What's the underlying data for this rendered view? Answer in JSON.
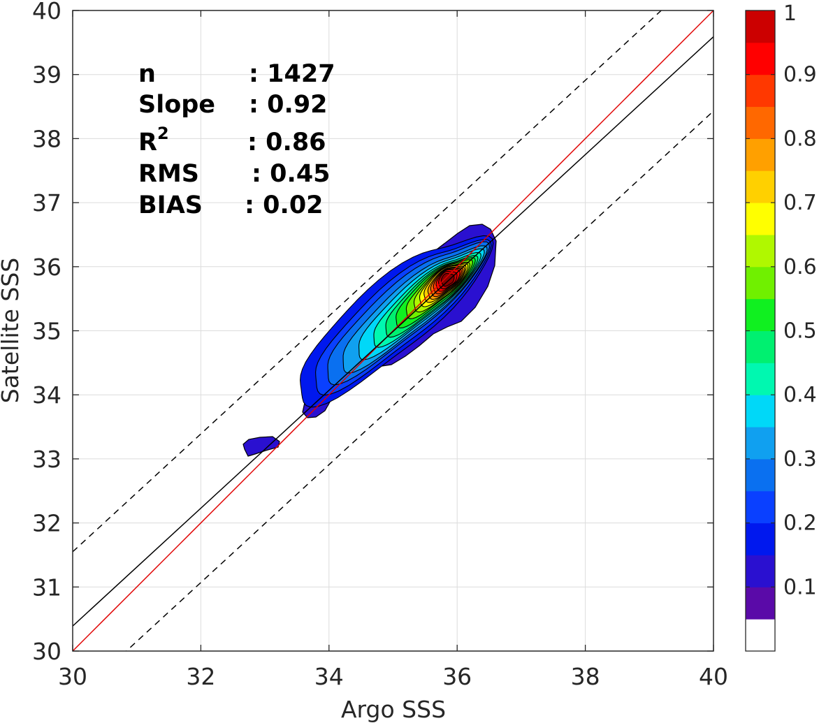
{
  "chart_data": {
    "type": "heatmap",
    "subtype": "filled-contour density scatter",
    "xlabel": "Argo SSS",
    "ylabel": "Satellite SSS",
    "xlim": [
      30,
      40
    ],
    "ylim": [
      30,
      40
    ],
    "xticks": [
      30,
      32,
      34,
      36,
      38,
      40
    ],
    "yticks": [
      30,
      31,
      32,
      33,
      34,
      35,
      36,
      37,
      38,
      39,
      40
    ],
    "grid": true,
    "stats": {
      "n": {
        "label": "n",
        "value": ": 1427"
      },
      "slope": {
        "label": "Slope",
        "value": ": 0.92"
      },
      "r2": {
        "label": "R",
        "sup": "2",
        "value": ": 0.86"
      },
      "rms": {
        "label": "RMS",
        "value": ": 0.45"
      },
      "bias": {
        "label": "BIAS",
        "value": ": 0.02"
      }
    },
    "lines": [
      {
        "name": "one-to-one",
        "color": "#e00000",
        "style": "solid",
        "slope": 1.0,
        "intercept": 0.0
      },
      {
        "name": "regression",
        "color": "#000000",
        "style": "solid",
        "slope": 0.92,
        "intercept": 2.79
      },
      {
        "name": "upper-bound",
        "color": "#000000",
        "style": "dashed",
        "slope": 0.92,
        "intercept": 3.95
      },
      {
        "name": "lower-bound",
        "color": "#000000",
        "style": "dashed",
        "slope": 0.92,
        "intercept": 1.63
      }
    ],
    "density_peak": {
      "x": 35.85,
      "y": 35.8
    },
    "colorbar": {
      "ticks": [
        "0.1",
        "0.2",
        "0.3",
        "0.4",
        "0.5",
        "0.6",
        "0.7",
        "0.8",
        "0.9",
        "1"
      ],
      "tick_values": [
        0.1,
        0.2,
        0.3,
        0.4,
        0.5,
        0.6,
        0.7,
        0.8,
        0.9,
        1.0
      ],
      "levels": [
        0,
        0.05,
        0.1,
        0.15,
        0.2,
        0.25,
        0.3,
        0.35,
        0.4,
        0.45,
        0.5,
        0.55,
        0.6,
        0.65,
        0.7,
        0.75,
        0.8,
        0.85,
        0.9,
        0.95,
        1.0
      ],
      "colors": [
        "#ffffff",
        "#5a0aa8",
        "#2a10d0",
        "#0018ee",
        "#0a40ff",
        "#0a70f0",
        "#10a0f0",
        "#00d8f8",
        "#00f8b0",
        "#00f070",
        "#10f020",
        "#70f000",
        "#b0f800",
        "#ffff00",
        "#ffd000",
        "#ffa000",
        "#ff6800",
        "#ff3800",
        "#ff0000",
        "#cc0000",
        "#880000"
      ]
    }
  }
}
